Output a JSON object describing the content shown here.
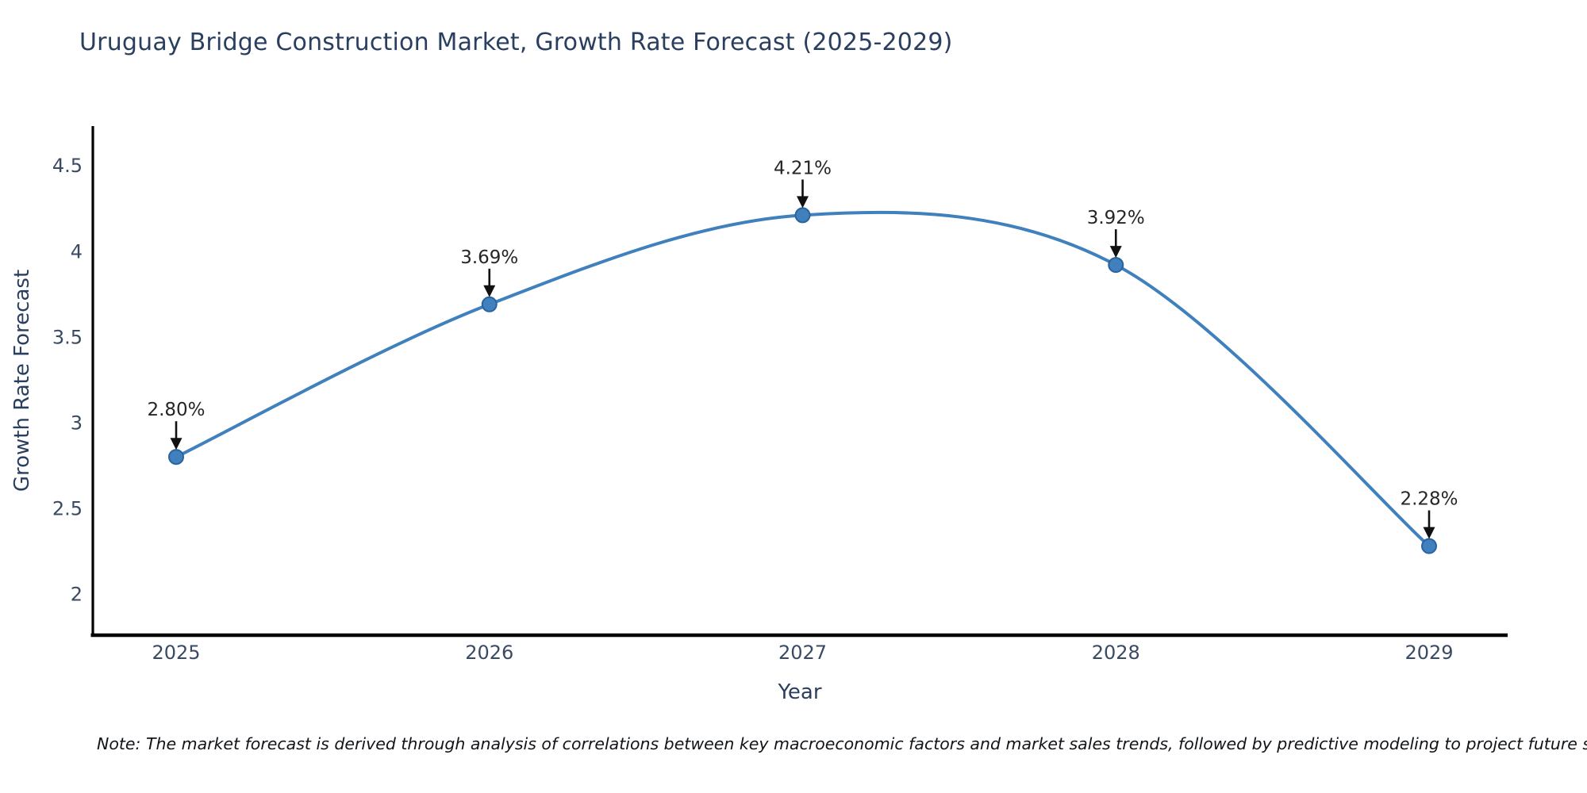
{
  "title": "Uruguay Bridge Construction Market, Growth Rate Forecast (2025-2029)",
  "note": "Note: The market forecast is derived through analysis of correlations between key macroeconomic factors and market sales trends, followed by predictive modeling to project future sales",
  "chart_data": {
    "type": "line",
    "title": "Uruguay Bridge Construction Market, Growth Rate Forecast (2025-2029)",
    "xlabel": "Year",
    "ylabel": "Growth Rate Forecast",
    "categories": [
      "2025",
      "2026",
      "2027",
      "2028",
      "2029"
    ],
    "values": [
      2.8,
      3.69,
      4.21,
      3.92,
      2.28
    ],
    "point_labels": [
      "2.80%",
      "3.69%",
      "4.21%",
      "3.92%",
      "2.28%"
    ],
    "yticks": [
      2,
      2.5,
      3,
      3.5,
      4,
      4.5
    ],
    "ylim": [
      1.76,
      4.73
    ],
    "line_shape": "spline",
    "grid": false,
    "legend": "none",
    "colors": {
      "line": "#3f80bd",
      "marker_fill": "#3f80bd",
      "marker_edge": "#2a639e",
      "axis_line": "#000000",
      "title_text": "#2a3f5f",
      "tick_text": "#3b4a63",
      "annotation_text": "#262626",
      "annotation_arrow": "#111111",
      "background": "#ffffff"
    }
  }
}
